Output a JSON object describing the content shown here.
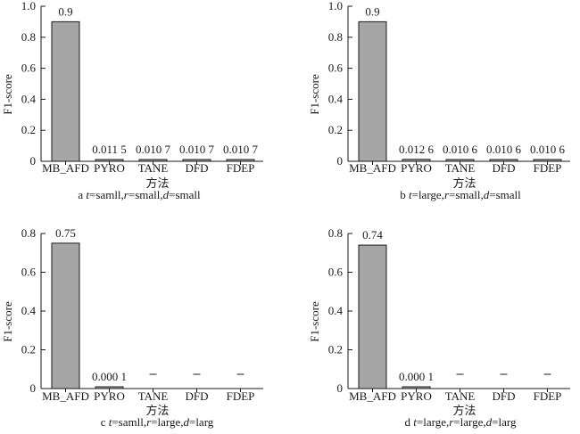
{
  "chart_data": [
    {
      "type": "bar",
      "categories": [
        "MB_AFD",
        "PYRO",
        "TANE",
        "DFD",
        "FDEP"
      ],
      "values": [
        0.9,
        0.0115,
        0.0107,
        0.0107,
        0.0107
      ],
      "data_labels": [
        "0.9",
        "0.011 5",
        "0.010 7",
        "0.010 7",
        "0.010 7"
      ],
      "xlabel": "方法",
      "ylabel": "F1-score",
      "ylim": [
        0,
        1.0
      ],
      "yticks": [
        "0",
        "0.2",
        "0.4",
        "0.6",
        "0.8",
        "1.0"
      ],
      "caption": {
        "prefix": "a ",
        "t": "t",
        "t_val": "=samll,",
        "r": "r",
        "r_val": "=small,",
        "d": "d",
        "d_val": "=small"
      }
    },
    {
      "type": "bar",
      "categories": [
        "MB_AFD",
        "PYRO",
        "TANE",
        "DFD",
        "FDEP"
      ],
      "values": [
        0.9,
        0.0126,
        0.0106,
        0.0106,
        0.0106
      ],
      "data_labels": [
        "0.9",
        "0.012 6",
        "0.010 6",
        "0.010 6",
        "0.010 6"
      ],
      "xlabel": "方法",
      "ylabel": "F1-score",
      "ylim": [
        0,
        1.0
      ],
      "yticks": [
        "0",
        "0.2",
        "0.4",
        "0.6",
        "0.8",
        "1.0"
      ],
      "caption": {
        "prefix": "b ",
        "t": "t",
        "t_val": "=large,",
        "r": "r",
        "r_val": "=small,",
        "d": "d",
        "d_val": "=small"
      }
    },
    {
      "type": "bar",
      "categories": [
        "MB_AFD",
        "PYRO",
        "TANE",
        "DFD",
        "FDEP"
      ],
      "values": [
        0.75,
        0.0001,
        null,
        null,
        null
      ],
      "data_labels": [
        "0.75",
        "0.000 1",
        "-",
        "-",
        "-"
      ],
      "xlabel": "方法",
      "ylabel": "F1-score",
      "ylim": [
        0,
        0.8
      ],
      "yticks": [
        "0",
        "0.2",
        "0.4",
        "0.6",
        "0.8"
      ],
      "caption": {
        "prefix": "c ",
        "t": "t",
        "t_val": "=samll,",
        "r": "r",
        "r_val": "=large,",
        "d": "d",
        "d_val": "=larg"
      }
    },
    {
      "type": "bar",
      "categories": [
        "MB_AFD",
        "PYRO",
        "TANE",
        "DFD",
        "FDEP"
      ],
      "values": [
        0.74,
        0.0001,
        null,
        null,
        null
      ],
      "data_labels": [
        "0.74",
        "0.000 1",
        "-",
        "-",
        "-"
      ],
      "xlabel": "方法",
      "ylabel": "F1-score",
      "ylim": [
        0,
        0.8
      ],
      "yticks": [
        "0",
        "0.2",
        "0.4",
        "0.6",
        "0.8"
      ],
      "caption": {
        "prefix": "d ",
        "t": "t",
        "t_val": "=large,",
        "r": "r",
        "r_val": "=large,",
        "d": "d",
        "d_val": "=larg"
      }
    }
  ]
}
